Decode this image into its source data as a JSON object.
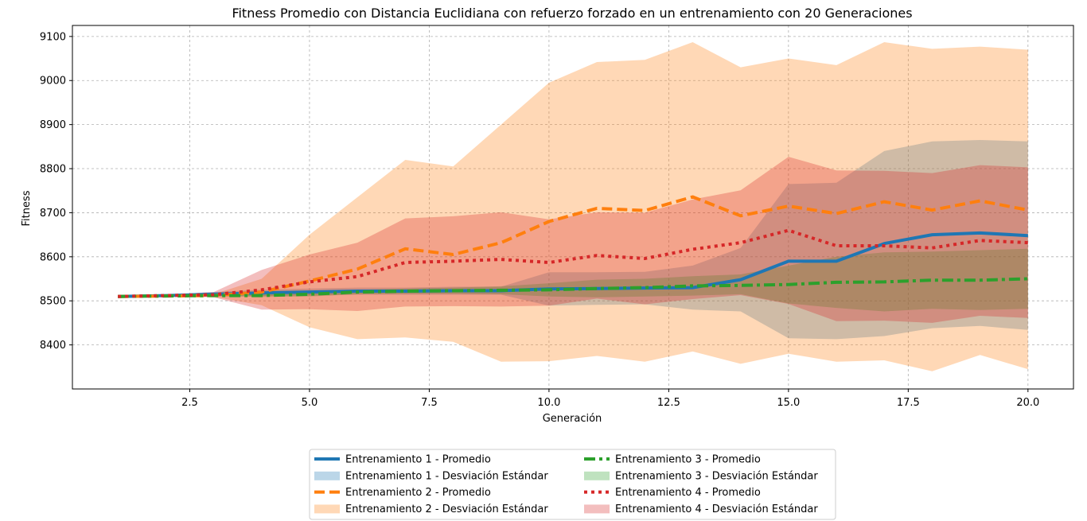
{
  "chart_data": {
    "type": "line",
    "title": "Fitness Promedio con Distancia Euclidiana con refuerzo forzado en un entrenamiento con 20 Generaciones",
    "xlabel": "Generación",
    "ylabel": "Fitness",
    "xlim": [
      0.05,
      20.95
    ],
    "ylim": [
      8300,
      9125
    ],
    "xticks": [
      2.5,
      5.0,
      7.5,
      10.0,
      12.5,
      15.0,
      17.5,
      20.0
    ],
    "xtick_labels": [
      "2.5",
      "5.0",
      "7.5",
      "10.0",
      "12.5",
      "15.0",
      "17.5",
      "20.0"
    ],
    "yticks": [
      8400,
      8500,
      8600,
      8700,
      8800,
      8900,
      9000,
      9100
    ],
    "ytick_labels": [
      "8400",
      "8500",
      "8600",
      "8700",
      "8800",
      "8900",
      "9000",
      "9100"
    ],
    "grid": true,
    "legend_position": "bottom-center",
    "x": [
      1,
      2,
      3,
      4,
      5,
      6,
      7,
      8,
      9,
      10,
      11,
      12,
      13,
      14,
      15,
      16,
      17,
      18,
      19,
      20
    ],
    "series": [
      {
        "name": "Entrenamiento 1 - Promedio",
        "band_name": "Entrenamiento 1 - Desviación Estándar",
        "color": "#1f77b4",
        "style": "solid",
        "mean": [
          8510,
          8512,
          8515,
          8518,
          8520,
          8522,
          8522,
          8523,
          8523,
          8527,
          8528,
          8529,
          8530,
          8548,
          8590,
          8590,
          8630,
          8650,
          8654,
          8648
        ],
        "upper": [
          8510,
          8514,
          8520,
          8525,
          8528,
          8530,
          8530,
          8532,
          8532,
          8565,
          8565,
          8566,
          8580,
          8620,
          8765,
          8768,
          8840,
          8862,
          8865,
          8862
        ],
        "lower": [
          8510,
          8510,
          8510,
          8511,
          8512,
          8514,
          8514,
          8514,
          8514,
          8489,
          8491,
          8492,
          8480,
          8476,
          8415,
          8413,
          8420,
          8438,
          8443,
          8434
        ]
      },
      {
        "name": "Entrenamiento 2 - Promedio",
        "band_name": "Entrenamiento 2 - Desviación Estándar",
        "color": "#ff7f0e",
        "style": "dashed",
        "mean": [
          8510,
          8511,
          8512,
          8520,
          8545,
          8572,
          8618,
          8605,
          8632,
          8680,
          8710,
          8705,
          8736,
          8693,
          8715,
          8698,
          8725,
          8706,
          8727,
          8706
        ],
        "upper": [
          8510,
          8512,
          8515,
          8550,
          8650,
          8735,
          8820,
          8805,
          8900,
          8995,
          9042,
          9047,
          9087,
          9030,
          9050,
          9035,
          9087,
          9072,
          9077,
          9070
        ],
        "lower": [
          8510,
          8510,
          8509,
          8490,
          8440,
          8413,
          8417,
          8407,
          8362,
          8363,
          8375,
          8362,
          8385,
          8357,
          8380,
          8362,
          8365,
          8340,
          8377,
          8345
        ]
      },
      {
        "name": "Entrenamiento 3 - Promedio",
        "band_name": "Entrenamiento 3 - Desviación Estándar",
        "color": "#2ca02c",
        "style": "dashdot",
        "mean": [
          8510,
          8511,
          8512,
          8512,
          8515,
          8520,
          8522,
          8523,
          8524,
          8525,
          8528,
          8530,
          8534,
          8535,
          8537,
          8542,
          8543,
          8547,
          8547,
          8550
        ],
        "upper": [
          8510,
          8512,
          8513,
          8515,
          8520,
          8525,
          8528,
          8530,
          8533,
          8540,
          8548,
          8550,
          8556,
          8560,
          8580,
          8600,
          8610,
          8612,
          8615,
          8618
        ],
        "lower": [
          8510,
          8510,
          8511,
          8509,
          8510,
          8515,
          8516,
          8516,
          8515,
          8510,
          8508,
          8510,
          8512,
          8515,
          8494,
          8484,
          8476,
          8482,
          8479,
          8482
        ]
      },
      {
        "name": "Entrenamiento 4 - Promedio",
        "band_name": "Entrenamiento 4 - Desviación Estándar",
        "color": "#d62728",
        "style": "dotted",
        "mean": [
          8510,
          8512,
          8514,
          8525,
          8543,
          8555,
          8587,
          8590,
          8594,
          8587,
          8603,
          8596,
          8617,
          8632,
          8660,
          8625,
          8625,
          8620,
          8637,
          8632
        ],
        "upper": [
          8510,
          8514,
          8520,
          8570,
          8605,
          8632,
          8687,
          8692,
          8701,
          8685,
          8701,
          8700,
          8730,
          8751,
          8827,
          8796,
          8795,
          8790,
          8808,
          8803
        ],
        "lower": [
          8510,
          8510,
          8508,
          8480,
          8481,
          8477,
          8487,
          8488,
          8487,
          8489,
          8505,
          8492,
          8504,
          8513,
          8493,
          8454,
          8455,
          8450,
          8466,
          8461
        ]
      }
    ],
    "legend_order": [
      {
        "series": 0,
        "kind": "line"
      },
      {
        "series": 0,
        "kind": "band"
      },
      {
        "series": 1,
        "kind": "line"
      },
      {
        "series": 1,
        "kind": "band"
      },
      {
        "series": 2,
        "kind": "line"
      },
      {
        "series": 2,
        "kind": "band"
      },
      {
        "series": 3,
        "kind": "line"
      },
      {
        "series": 3,
        "kind": "band"
      }
    ]
  }
}
